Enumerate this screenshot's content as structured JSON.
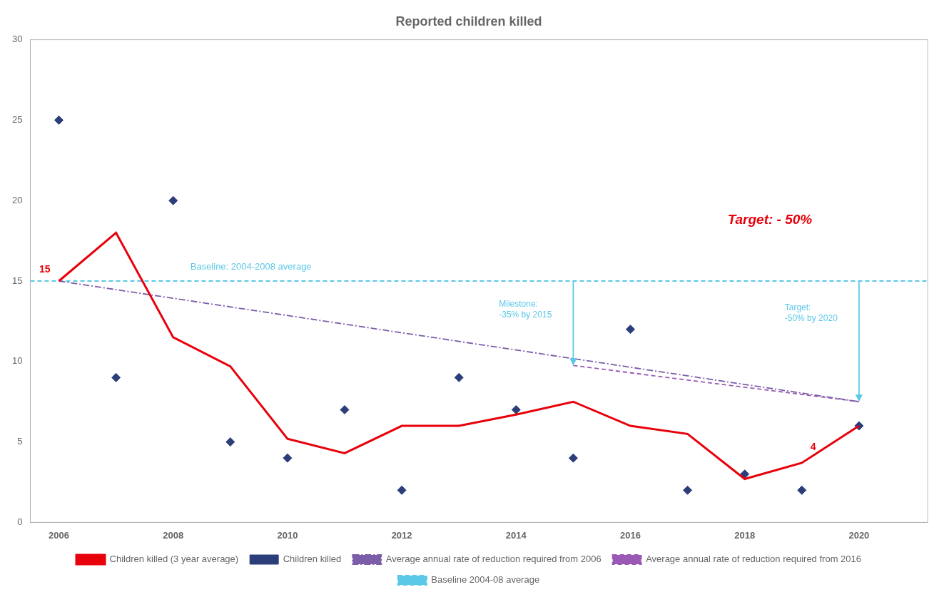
{
  "chart_data": {
    "type": "line",
    "title": "Reported children killed",
    "xlim": [
      2005.5,
      2021.2
    ],
    "xticks": [
      2006,
      2008,
      2010,
      2012,
      2014,
      2016,
      2018,
      2020
    ],
    "ylim": [
      0,
      30
    ],
    "yticks": [
      0,
      5,
      10,
      15,
      20,
      25,
      30
    ],
    "grid": false,
    "legend": "bottom",
    "series": [
      {
        "name": "Baseline 2004-08 average",
        "type": "hline",
        "value": 15,
        "color": "#5BC8E8",
        "line_style": "dashed"
      },
      {
        "name": "Average annual rate of reduction required from 2006",
        "type": "line",
        "x": [
          2006,
          2020
        ],
        "values": [
          15,
          7.5
        ],
        "color": "#7B5EA7",
        "line_style": "dashdot"
      },
      {
        "name": "Average annual rate of reduction required from 2016",
        "type": "line",
        "x": [
          2015,
          2020
        ],
        "values": [
          9.75,
          7.5
        ],
        "color": "#9B59B6",
        "line_style": "dashed"
      },
      {
        "name": "Children killed",
        "type": "scatter",
        "marker": "diamond",
        "x": [
          2006,
          2007,
          2008,
          2009,
          2010,
          2011,
          2012,
          2013,
          2014,
          2015,
          2016,
          2017,
          2018,
          2019,
          2020
        ],
        "values": [
          25,
          9,
          20,
          5,
          4,
          7,
          2,
          9,
          7,
          4,
          12,
          2,
          3,
          2,
          6
        ],
        "color": "#2C3E7A"
      },
      {
        "name": "Children killed (3 year average)",
        "type": "line",
        "x": [
          2006,
          2007,
          2008,
          2009,
          2010,
          2011,
          2012,
          2013,
          2014,
          2015,
          2016,
          2017,
          2018,
          2019,
          2020
        ],
        "values": [
          15,
          18,
          11.5,
          9.7,
          5.2,
          4.3,
          6.0,
          6.0,
          6.7,
          7.5,
          6.0,
          5.5,
          2.7,
          3.7,
          6.0
        ],
        "color": "#E8000A",
        "line_style": "solid"
      }
    ],
    "arrows": [
      {
        "x": 2015,
        "from": 15,
        "to": 9.75,
        "color": "#5BC8E8"
      },
      {
        "x": 2020,
        "from": 15,
        "to": 7.5,
        "color": "#5BC8E8"
      }
    ],
    "annotations": [
      {
        "text": "15",
        "x": 2005.85,
        "y": 15.3,
        "color": "#E8000A"
      },
      {
        "text": "4",
        "x": 2019.15,
        "y": 4.3,
        "color": "#E8000A"
      },
      {
        "text": "Baseline: 2004-2008 average",
        "x": 2008.3,
        "y": 15.5,
        "color": "#5BC8E8"
      },
      {
        "text": "Milestone:\n-35% by 2015",
        "x": 2013.7,
        "y": 13.2,
        "color": "#5BC8E8"
      },
      {
        "text": "Target:\n-50% by 2020",
        "x": 2018.7,
        "y": 13.0,
        "color": "#5BC8E8"
      },
      {
        "text": "Target: - 50%",
        "x": 2017.7,
        "y": 18.8,
        "color": "#E8000A"
      }
    ]
  }
}
